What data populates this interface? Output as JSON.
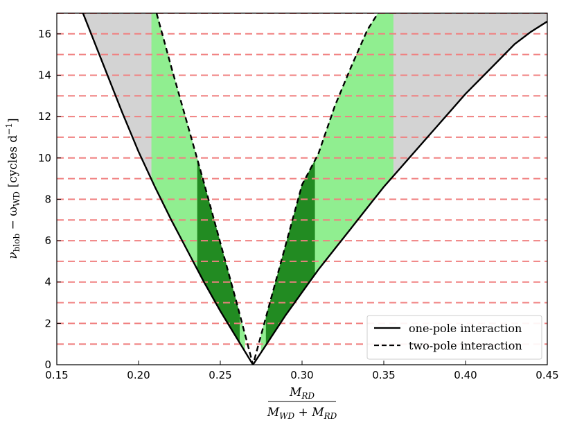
{
  "chart_data": {
    "type": "area",
    "title": "",
    "xlabel": {
      "numerator": "M_RD",
      "denominator": "M_WD + M_RD",
      "num_main": "M",
      "num_sub": "RD",
      "den_main1": "M",
      "den_sub1": "WD",
      "den_plus": " + ",
      "den_main2": "M",
      "den_sub2": "RD"
    },
    "ylabel": {
      "text": "ν_blob − ω_WD [cycles d^-1]",
      "nu": "ν",
      "nu_sub": "blob",
      "minus": " − ω",
      "omega_sub": "WD",
      "unit_open": " [cycles d",
      "unit_sup": "−1",
      "unit_close": "]"
    },
    "xlim": [
      0.15,
      0.45
    ],
    "ylim": [
      0,
      17
    ],
    "xticks": [
      0.15,
      0.2,
      0.25,
      0.3,
      0.35,
      0.4,
      0.45
    ],
    "xtick_labels": [
      "0.15",
      "0.20",
      "0.25",
      "0.30",
      "0.35",
      "0.40",
      "0.45"
    ],
    "yticks": [
      0,
      2,
      4,
      6,
      8,
      10,
      12,
      14,
      16
    ],
    "ytick_labels": [
      "0",
      "2",
      "4",
      "6",
      "8",
      "10",
      "12",
      "14",
      "16"
    ],
    "grid": false,
    "legend_position": "bottom-right",
    "horizontal_lines": {
      "values": [
        1,
        2,
        3,
        4,
        5,
        6,
        7,
        8,
        9,
        10,
        11,
        12,
        13,
        14,
        15,
        16,
        17
      ],
      "style": "dashed",
      "color": "#f08080"
    },
    "series": [
      {
        "name": "one-pole interaction",
        "style": "solid",
        "color": "#000000",
        "x": [
          0.166,
          0.18,
          0.19,
          0.2,
          0.21,
          0.22,
          0.23,
          0.24,
          0.25,
          0.26,
          0.27,
          0.28,
          0.29,
          0.3,
          0.31,
          0.32,
          0.33,
          0.34,
          0.35,
          0.36,
          0.37,
          0.38,
          0.39,
          0.4,
          0.41,
          0.42,
          0.43,
          0.44,
          0.45
        ],
        "y": [
          17.0,
          14.2,
          12.2,
          10.3,
          8.6,
          7.0,
          5.5,
          4.0,
          2.6,
          1.3,
          0.0,
          1.2,
          2.4,
          3.5,
          4.6,
          5.6,
          6.6,
          7.6,
          8.6,
          9.5,
          10.4,
          11.3,
          12.2,
          13.1,
          13.9,
          14.7,
          15.5,
          16.1,
          16.6
        ]
      },
      {
        "name": "two-pole interaction",
        "style": "dashed",
        "color": "#000000",
        "x": [
          0.211,
          0.22,
          0.23,
          0.24,
          0.25,
          0.26,
          0.27,
          0.28,
          0.29,
          0.3,
          0.31,
          0.32,
          0.33,
          0.34,
          0.3465
        ],
        "y": [
          17.0,
          14.4,
          11.6,
          8.8,
          5.9,
          3.0,
          0.0,
          2.9,
          5.8,
          8.7,
          10.2,
          12.5,
          14.4,
          16.2,
          17.0
        ]
      }
    ],
    "regions": [
      {
        "color": "#d3d3d3",
        "label": "gray",
        "x_range": [
          0.166,
          0.208
        ]
      },
      {
        "color": "#90ee90",
        "label": "light-green",
        "x_range": [
          0.208,
          0.236
        ]
      },
      {
        "color": "#228b22",
        "label": "dark-green",
        "x_range": [
          0.236,
          0.262
        ]
      },
      {
        "color": "#90ee90",
        "label": "light-green",
        "x_range": [
          0.262,
          0.265
        ]
      },
      {
        "color": "#90ee90",
        "label": "light-green",
        "x_range": [
          0.275,
          0.278
        ]
      },
      {
        "color": "#228b22",
        "label": "dark-green",
        "x_range": [
          0.278,
          0.308
        ]
      },
      {
        "color": "#90ee90",
        "label": "light-green",
        "x_range": [
          0.308,
          0.356
        ]
      },
      {
        "color": "#d3d3d3",
        "label": "gray",
        "x_range": [
          0.356,
          0.45
        ]
      }
    ]
  }
}
